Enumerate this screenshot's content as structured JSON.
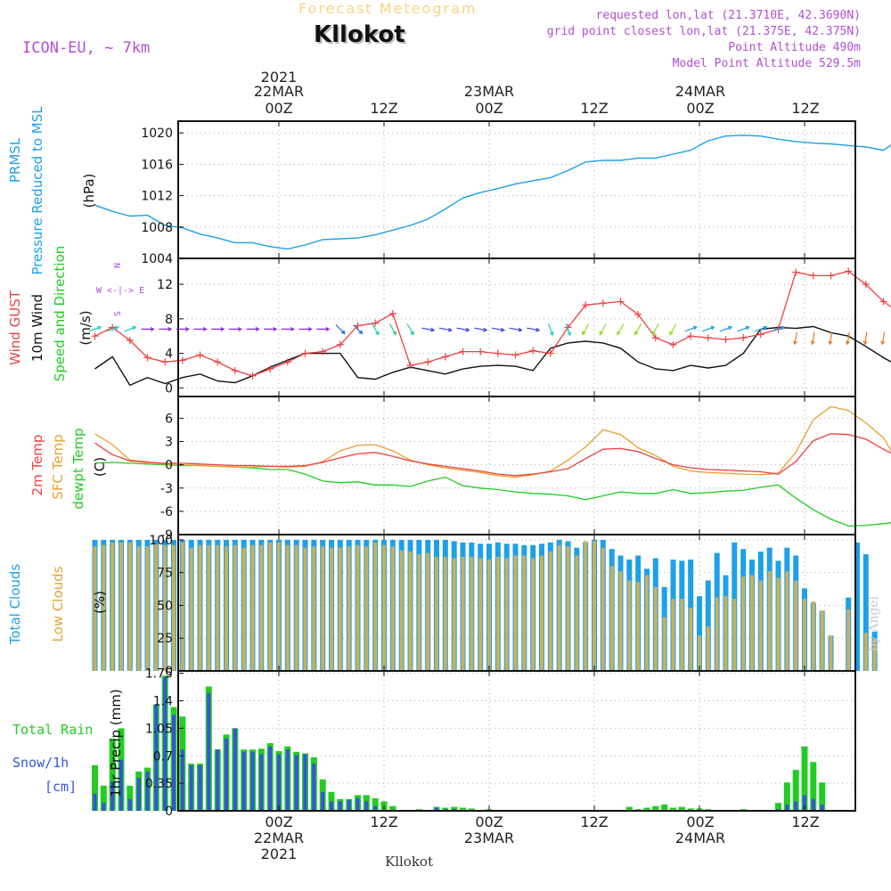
{
  "header": {
    "title": "Forecast Meteogram",
    "location": "Kllokot",
    "model": "ICON-EU, ~ 7km",
    "requested": "requested lon,lat (21.3710E, 42.3690N)",
    "grid_point": "grid point closest lon,lat (21.375E, 42.375N)",
    "point_altitude": "Point Altitude 490m",
    "model_altitude": "Model Point Altitude 529.5m",
    "footer_location": "Kllokot",
    "watermark": "by Angel"
  },
  "time_axis": {
    "year": "2021",
    "top_dates": [
      "22MAR",
      "23MAR",
      "24MAR"
    ],
    "tick_labels": [
      "00Z",
      "12Z",
      "00Z",
      "12Z",
      "00Z",
      "12Z"
    ],
    "bottom_dates": [
      "22MAR",
      "23MAR",
      "24MAR"
    ]
  },
  "panel_labels": {
    "pressure": [
      "PRMSL",
      "Pressure Reduced to MSL",
      "(hPa)"
    ],
    "wind": [
      "Wind GUST",
      "10m Wind",
      "Speed and Direction",
      "(m/s)"
    ],
    "compass": [
      "N",
      "W  <-|->  E",
      "S"
    ],
    "temp": [
      "2m Temp",
      "SFC Temp",
      "dewpt Temp",
      "(C)"
    ],
    "clouds": [
      "Total Clouds",
      "Low Clouds",
      "(%)"
    ],
    "precip": [
      "Total  Rain",
      "Snow/1h",
      "[cm]",
      "1hr Precip (mm)"
    ]
  },
  "colors": {
    "pressure": "#1ea0e8",
    "gust": "#ee4040",
    "wind": "#111111",
    "temp2m": "#ee4040",
    "sfc": "#e8a030",
    "dewpt": "#22cc22",
    "total_clouds": "#1ea0e8",
    "low_clouds": "#c8b060",
    "rain": "#22cc22",
    "snow": "#3355dd",
    "purple": "#b04fd6"
  },
  "chart_data": [
    {
      "type": "line",
      "title": "PRMSL Pressure Reduced to MSL",
      "ylabel": "(hPa)",
      "x_hours": [
        -21,
        -19,
        -17,
        -15,
        -13,
        -11,
        -9,
        -7,
        -5,
        -3,
        -1,
        1,
        3,
        5,
        7,
        9,
        11,
        13,
        15,
        17,
        19,
        21,
        23,
        25,
        27,
        29,
        31,
        33,
        35,
        37,
        39,
        41,
        43,
        45,
        47,
        49,
        51,
        53,
        55,
        57,
        59,
        61,
        63,
        65,
        67,
        69,
        71
      ],
      "values": [
        1010.8,
        1010,
        1009.4,
        1009.5,
        1008.2,
        1007.9,
        1007.1,
        1006.6,
        1006.0,
        1006.0,
        1005.5,
        1005.2,
        1005.7,
        1006.4,
        1006.5,
        1006.6,
        1007.0,
        1007.6,
        1008.2,
        1009.0,
        1010.3,
        1011.7,
        1012.4,
        1012.9,
        1013.5,
        1013.9,
        1014.3,
        1015.2,
        1016.3,
        1016.5,
        1016.5,
        1016.8,
        1016.8,
        1017.3,
        1017.8,
        1019.0,
        1019.6,
        1019.7,
        1019.6,
        1019.2,
        1018.9,
        1018.7,
        1018.6,
        1018.4,
        1018.2,
        1017.8,
        1019.3
      ],
      "yticks": [
        1004,
        1008,
        1012,
        1016,
        1020
      ],
      "ylim": [
        1004,
        1021.5
      ]
    },
    {
      "type": "line",
      "title": "Wind GUST / 10m Wind Speed and Direction",
      "ylabel": "(m/s)",
      "x_hours": [
        -21,
        -19,
        -17,
        -15,
        -13,
        -11,
        -9,
        -7,
        -5,
        -3,
        -1,
        1,
        3,
        5,
        7,
        9,
        11,
        13,
        15,
        17,
        19,
        21,
        23,
        25,
        27,
        29,
        31,
        33,
        35,
        37,
        39,
        41,
        43,
        45,
        47,
        49,
        51,
        53,
        55,
        57,
        59,
        61,
        63,
        65,
        67,
        69,
        71
      ],
      "gust": [
        6,
        7,
        5.5,
        3.5,
        3,
        3.2,
        3.8,
        3,
        2,
        1.4,
        2.2,
        3,
        4,
        4.2,
        5,
        7.2,
        7.5,
        8.6,
        2.6,
        3,
        3.6,
        4.2,
        4.2,
        4.0,
        3.8,
        4.3,
        4.0,
        7.0,
        9.6,
        9.8,
        10,
        8.5,
        5.8,
        5,
        6.0,
        5.8,
        5.6,
        5.8,
        6.2,
        6.8,
        13.4,
        13,
        13.0,
        13.5,
        12.0,
        10.0,
        8.6
      ],
      "wind": [
        2.2,
        3.6,
        0.3,
        1.2,
        0.5,
        1.2,
        1.6,
        0.8,
        0.6,
        1.4,
        2.4,
        3.2,
        4.0,
        4.0,
        4.0,
        1.2,
        1.0,
        1.8,
        2.4,
        2.0,
        1.6,
        2.2,
        2.5,
        2.6,
        2.5,
        2.0,
        4.6,
        5.2,
        5.4,
        5.2,
        4.6,
        3.0,
        2.2,
        2.0,
        2.6,
        2.3,
        2.6,
        4.0,
        6.8,
        7.0,
        6.9,
        7.1,
        6.4,
        6.0,
        4.8,
        3.5,
        2.4
      ],
      "yticks": [
        0,
        4,
        8,
        12
      ],
      "ylim": [
        -1,
        15
      ]
    },
    {
      "type": "line",
      "title": "2m Temp / SFC Temp / dewpt Temp",
      "ylabel": "(C)",
      "x_hours": [
        -21,
        -19,
        -17,
        -15,
        -13,
        -11,
        -9,
        -7,
        -5,
        -3,
        -1,
        1,
        3,
        5,
        7,
        9,
        11,
        13,
        15,
        17,
        19,
        21,
        23,
        25,
        27,
        29,
        31,
        33,
        35,
        37,
        39,
        41,
        43,
        45,
        47,
        49,
        51,
        53,
        55,
        57,
        59,
        61,
        63,
        65,
        67,
        69,
        71
      ],
      "t2m": [
        2.8,
        1.3,
        0.5,
        0.3,
        0.2,
        0.2,
        0.1,
        0.0,
        -0.1,
        -0.1,
        -0.2,
        -0.2,
        -0.1,
        0.3,
        0.9,
        1.4,
        1.6,
        1.1,
        0.5,
        0.1,
        -0.2,
        -0.5,
        -0.8,
        -1.2,
        -1.4,
        -1.2,
        -0.9,
        -0.5,
        0.8,
        2.0,
        2.1,
        1.7,
        0.8,
        0.0,
        -0.4,
        -0.6,
        -0.7,
        -0.8,
        -0.9,
        -1.2,
        0.4,
        3.1,
        4.0,
        3.9,
        3.3,
        2.0,
        0.9
      ],
      "sfc": [
        4.0,
        2.6,
        0.6,
        0.4,
        0.1,
        0.0,
        -0.1,
        -0.2,
        -0.3,
        -0.3,
        -0.2,
        -0.3,
        -0.2,
        0.4,
        1.8,
        2.5,
        2.6,
        1.8,
        0.6,
        0.0,
        -0.4,
        -0.7,
        -1.0,
        -1.4,
        -1.6,
        -1.3,
        -0.8,
        0.6,
        2.3,
        4.5,
        3.9,
        2.2,
        1.2,
        -0.2,
        -0.8,
        -1.0,
        -1.1,
        -1.2,
        -1.3,
        -1.1,
        1.6,
        5.8,
        7.5,
        7.0,
        5.4,
        3.5,
        -0.3
      ],
      "dewpt": [
        0.2,
        0.3,
        0.2,
        0.1,
        0.0,
        -0.1,
        -0.1,
        -0.2,
        -0.3,
        -0.4,
        -0.6,
        -0.6,
        -1.2,
        -2.1,
        -2.3,
        -2.2,
        -2.6,
        -2.6,
        -2.8,
        -2.1,
        -1.6,
        -2.7,
        -3.0,
        -3.2,
        -3.5,
        -3.7,
        -3.8,
        -4.0,
        -4.5,
        -4.0,
        -3.5,
        -3.7,
        -3.7,
        -3.2,
        -3.7,
        -3.6,
        -3.4,
        -3.3,
        -2.9,
        -2.6,
        -4.3,
        -5.8,
        -7.0,
        -7.9,
        -7.8,
        -7.6,
        -7.3
      ],
      "yticks": [
        -9,
        -6,
        -3,
        0,
        3,
        6
      ],
      "ylim": [
        -9,
        8.8
      ]
    },
    {
      "type": "bar",
      "title": "Total Clouds / Low Clouds",
      "ylabel": "(%)",
      "x_hours": [
        -21,
        -20,
        -19,
        -18,
        -17,
        -16,
        -15,
        -14,
        -13,
        -12,
        -11,
        -10,
        -9,
        -8,
        -7,
        -6,
        -5,
        -4,
        -3,
        -2,
        -1,
        0,
        1,
        2,
        3,
        4,
        5,
        6,
        7,
        8,
        9,
        10,
        11,
        12,
        13,
        14,
        15,
        16,
        17,
        18,
        19,
        20,
        21,
        22,
        23,
        24,
        25,
        26,
        27,
        28,
        29,
        30,
        31,
        32,
        33,
        34,
        35,
        36,
        37,
        38,
        39,
        40,
        41,
        42,
        43,
        44,
        45,
        46,
        47,
        48,
        49,
        50,
        51,
        52,
        53,
        54,
        55,
        56,
        57,
        58,
        59,
        60,
        61,
        62,
        63,
        64,
        65,
        66,
        67,
        68,
        69,
        70,
        71,
        72
      ],
      "total": [
        100,
        100,
        100,
        100,
        100,
        100,
        100,
        100,
        100,
        100,
        100,
        100,
        100,
        100,
        100,
        100,
        100,
        100,
        100,
        100,
        100,
        100,
        100,
        100,
        100,
        100,
        100,
        100,
        100,
        100,
        100,
        100,
        100,
        100,
        100,
        100,
        100,
        100,
        100,
        100,
        100,
        99,
        98,
        98,
        97,
        97,
        98,
        97,
        97,
        96,
        96,
        97,
        98,
        100,
        99,
        94,
        98,
        100,
        100,
        93,
        88,
        85,
        88,
        78,
        86,
        64,
        85,
        84,
        85,
        57,
        69,
        90,
        73,
        98,
        93,
        85,
        91,
        94,
        84,
        94,
        88,
        63,
        52,
        46,
        27,
        0,
        56,
        98,
        89,
        30,
        0,
        0,
        0,
        0
      ],
      "low": [
        95,
        96,
        98,
        98,
        98,
        95,
        95,
        97,
        96,
        96,
        98,
        94,
        96,
        96,
        96,
        95,
        96,
        94,
        96,
        96,
        98,
        98,
        96,
        96,
        94,
        95,
        95,
        94,
        94,
        95,
        96,
        95,
        98,
        96,
        95,
        92,
        91,
        89,
        90,
        87,
        87,
        86,
        87,
        87,
        86,
        85,
        87,
        86,
        88,
        88,
        86,
        88,
        91,
        96,
        95,
        88,
        99,
        99,
        94,
        80,
        76,
        69,
        68,
        73,
        64,
        41,
        55,
        55,
        48,
        27,
        34,
        56,
        57,
        55,
        72,
        73,
        69,
        76,
        71,
        76,
        69,
        55,
        53,
        46,
        27,
        0,
        47,
        0,
        29,
        25,
        0,
        0,
        0,
        0
      ],
      "yticks": [
        0,
        25,
        50,
        75,
        100
      ],
      "ylim": [
        0,
        104
      ]
    },
    {
      "type": "bar",
      "title": "1hr Precip (mm) - Total Rain / Snow",
      "ylabel": "1hr Precip (mm)",
      "x_hours": [
        -21,
        -20,
        -19,
        -18,
        -17,
        -16,
        -15,
        -14,
        -13,
        -12,
        -11,
        -10,
        -9,
        -8,
        -7,
        -6,
        -5,
        -4,
        -3,
        -2,
        -1,
        0,
        1,
        2,
        3,
        4,
        5,
        6,
        7,
        8,
        9,
        10,
        11,
        12,
        13,
        14,
        15,
        16,
        17,
        18,
        19,
        20,
        21,
        22,
        23,
        24,
        25,
        26,
        27,
        28,
        29,
        30,
        31,
        32,
        33,
        34,
        35,
        36,
        37,
        38,
        39,
        40,
        41,
        42,
        43,
        44,
        45,
        46,
        47,
        48,
        49,
        50,
        51,
        52,
        53,
        54,
        55,
        56,
        57,
        58,
        59,
        60,
        61,
        62,
        63,
        64,
        65,
        66,
        67,
        68,
        69,
        70,
        71,
        72
      ],
      "total": [
        0.58,
        0.32,
        0.92,
        1.05,
        0.32,
        0.5,
        0.55,
        1.35,
        1.72,
        1.32,
        1.2,
        0.6,
        0.6,
        1.58,
        0.78,
        0.97,
        1.05,
        0.78,
        0.78,
        0.79,
        0.86,
        0.76,
        0.82,
        0.75,
        0.73,
        0.68,
        0.4,
        0.24,
        0.15,
        0.15,
        0.2,
        0.2,
        0.16,
        0.12,
        0.06,
        0.0,
        0.01,
        0.02,
        0.01,
        0.05,
        0.04,
        0.05,
        0.04,
        0.03,
        0.01,
        0.02,
        0.01,
        0.0,
        0.01,
        0.01,
        0.0,
        0.0,
        0.01,
        0.0,
        0.0,
        0.01,
        0.0,
        0.0,
        0.0,
        0.01,
        0.0,
        0.05,
        0.02,
        0.04,
        0.06,
        0.08,
        0.04,
        0.05,
        0.03,
        0.03,
        0.02,
        0.01,
        0.01,
        0.01,
        0.02,
        0.0,
        0.0,
        0.0,
        0.1,
        0.36,
        0.52,
        0.82,
        0.62,
        0.36,
        0.0,
        0.0,
        0.0,
        0.0,
        0.0,
        0.0,
        0.0,
        0.0,
        0.0,
        0.0
      ],
      "snow": [
        0.22,
        0.1,
        0.38,
        0.65,
        0.15,
        0.42,
        0.5,
        1.35,
        1.7,
        1.22,
        0.78,
        0.58,
        0.58,
        1.5,
        0.78,
        0.92,
        1.05,
        0.75,
        0.75,
        0.72,
        0.82,
        0.72,
        0.78,
        0.71,
        0.72,
        0.6,
        0.24,
        0.12,
        0.12,
        0.14,
        0.16,
        0.12,
        0.06,
        0.01,
        0.0,
        0.0,
        0.0,
        0.0,
        0.01,
        0.04,
        0.02,
        0.02,
        0.01,
        0.01,
        0.0,
        0.0,
        0.0,
        0.0,
        0.0,
        0.0,
        0.0,
        0.0,
        0.0,
        0.0,
        0.0,
        0.0,
        0.0,
        0.0,
        0.0,
        0.0,
        0.0,
        0.01,
        0.0,
        0.01,
        0.01,
        0.01,
        0.0,
        0.0,
        0.0,
        0.0,
        0.0,
        0.0,
        0.0,
        0.0,
        0.0,
        0.0,
        0.0,
        0.0,
        0.02,
        0.08,
        0.12,
        0.2,
        0.15,
        0.08,
        0.0,
        0.0,
        0.0,
        0.0,
        0.0,
        0.0,
        0.0,
        0.0,
        0.0,
        0.0
      ],
      "yticks": [
        0,
        0.35,
        0.7,
        1.05,
        1.4,
        1.75
      ],
      "ytick_labels": [
        "0",
        "0.35",
        "0.7",
        "1.05",
        "1.4",
        "1.75"
      ],
      "ylim": [
        0,
        1.78
      ]
    }
  ]
}
